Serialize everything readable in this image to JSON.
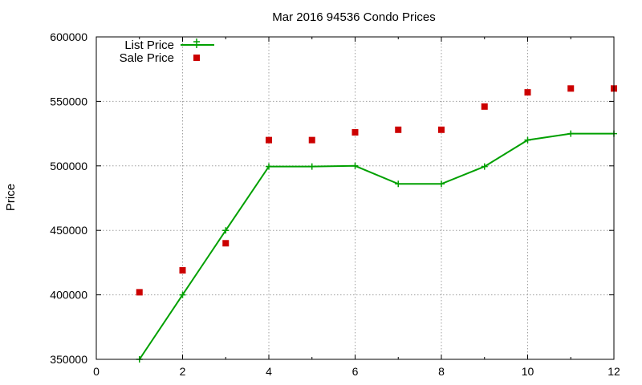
{
  "chart_data": {
    "type": "line",
    "title": "Mar 2016 94536 Condo Prices",
    "xlabel": "",
    "ylabel": "Price",
    "xlim": [
      0,
      12
    ],
    "ylim": [
      350000,
      600000
    ],
    "xticks": [
      0,
      2,
      4,
      6,
      8,
      10,
      12
    ],
    "yticks": [
      350000,
      400000,
      450000,
      500000,
      550000,
      600000
    ],
    "grid": true,
    "legend_position": "top-left",
    "series": [
      {
        "name": "List Price",
        "style": "line-with-plus-markers",
        "color": "#00a000",
        "x": [
          1,
          2,
          3,
          4,
          5,
          6,
          7,
          8,
          9,
          10,
          11,
          12
        ],
        "y": [
          350000,
          400000,
          450000,
          499500,
          499500,
          500000,
          486000,
          486000,
          499500,
          520000,
          525000,
          525000
        ]
      },
      {
        "name": "Sale Price",
        "style": "square-markers",
        "color": "#cc0000",
        "x": [
          1,
          2,
          3,
          4,
          5,
          6,
          7,
          8,
          9,
          10,
          11,
          12
        ],
        "y": [
          402000,
          419000,
          440000,
          520000,
          520000,
          526000,
          528000,
          528000,
          546000,
          557000,
          560000,
          560000
        ]
      }
    ]
  }
}
